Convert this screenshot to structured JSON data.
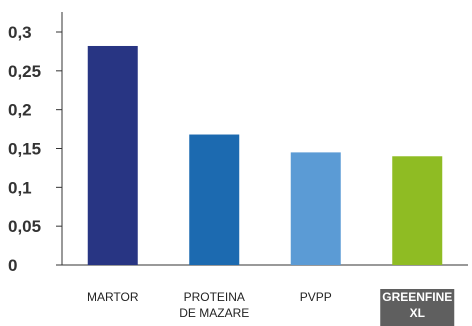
{
  "chart_data": {
    "type": "bar",
    "categories": [
      [
        "MARTOR"
      ],
      [
        "PROTEINA",
        "DE MAZARE"
      ],
      [
        "PVPP"
      ],
      [
        "GREENFINE",
        "XL"
      ]
    ],
    "values": [
      0.282,
      0.168,
      0.145,
      0.14
    ],
    "bar_colors": [
      "#283583",
      "#1c6ab0",
      "#5b9bd5",
      "#8fbc23"
    ],
    "highlight_index": 3,
    "highlight_label_bg": "#5f5f5f",
    "ylim": [
      0,
      0.3
    ],
    "yticks": [
      0,
      0.05,
      0.1,
      0.15,
      0.2,
      0.25,
      0.3
    ],
    "ytick_labels": [
      "0",
      "0,05",
      "0,1",
      "0,15",
      "0,2",
      "0,25",
      "0,3"
    ],
    "title": "",
    "xlabel": "",
    "ylabel": "",
    "grid": false,
    "legend": "none",
    "axis_color": "#333333"
  }
}
